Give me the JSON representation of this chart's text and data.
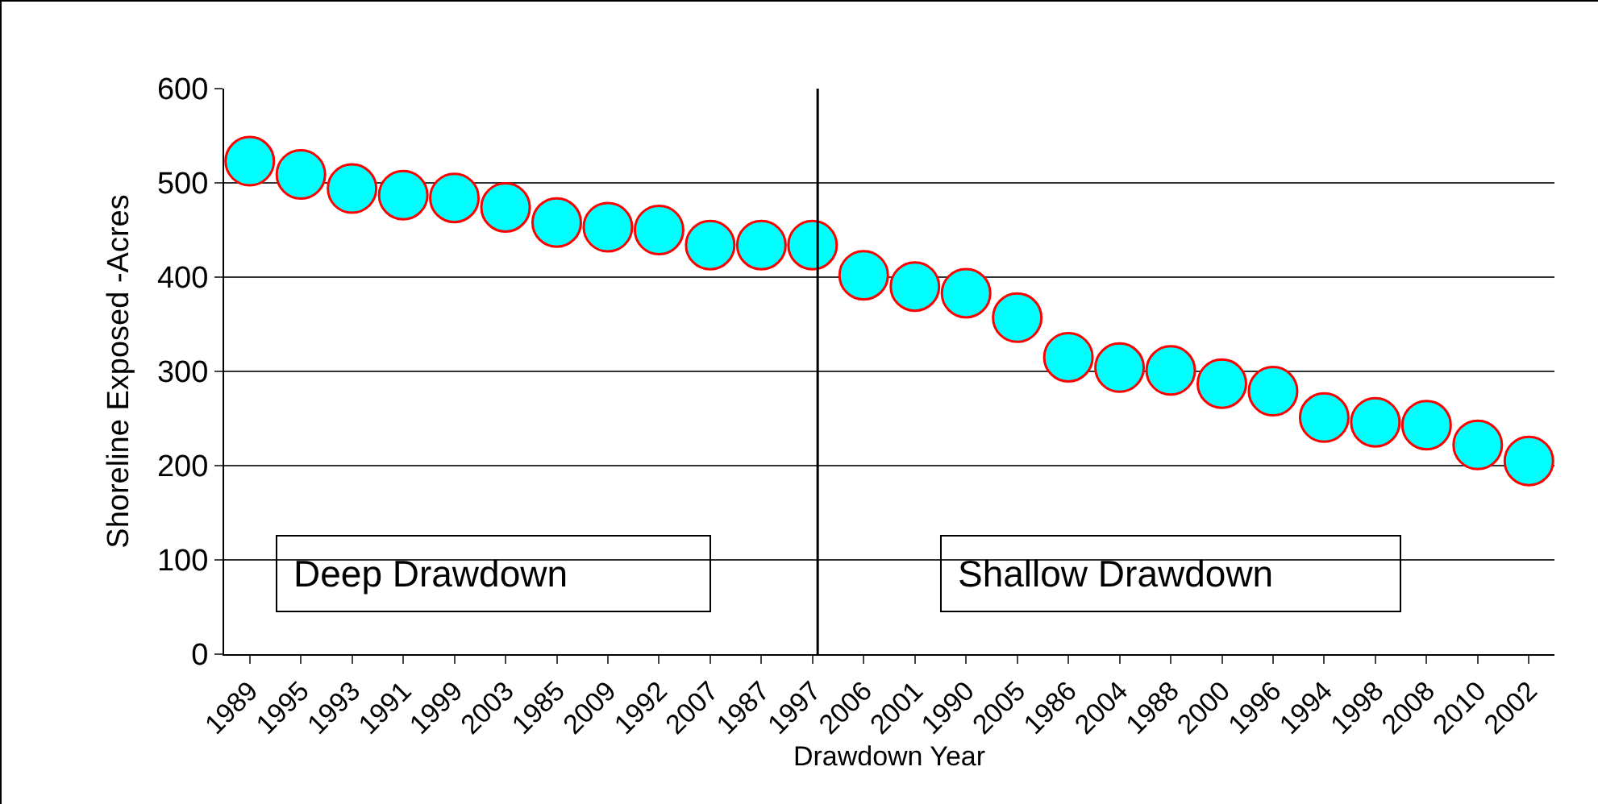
{
  "chart_data": {
    "type": "scatter",
    "xlabel": "Drawdown Year",
    "ylabel": "Shoreline Exposed -Acres",
    "categories": [
      "1989",
      "1995",
      "1993",
      "1991",
      "1999",
      "2003",
      "1985",
      "2009",
      "1992",
      "2007",
      "1987",
      "1997",
      "2006",
      "2001",
      "1990",
      "2005",
      "1986",
      "2004",
      "1988",
      "2000",
      "1996",
      "1994",
      "1998",
      "2008",
      "2010",
      "2002"
    ],
    "series": [
      {
        "color": "#00ffff",
        "values": [
          523,
          509,
          494,
          487,
          484,
          474,
          458,
          453,
          450,
          434,
          434,
          434,
          402,
          390,
          383,
          357,
          315,
          304,
          301,
          287,
          279,
          251,
          246,
          243,
          222,
          205
        ]
      }
    ],
    "ylim": [
      0,
      600
    ],
    "yticks": [
      0,
      100,
      200,
      300,
      400,
      500,
      600
    ],
    "grid": "y",
    "marker": "circle",
    "legend": false,
    "ref_lines": [
      {
        "axis": "x",
        "value": "1997",
        "color": "#000000"
      }
    ],
    "annotations": [
      "Deep Drawdown",
      "Shallow Drawdown"
    ]
  }
}
